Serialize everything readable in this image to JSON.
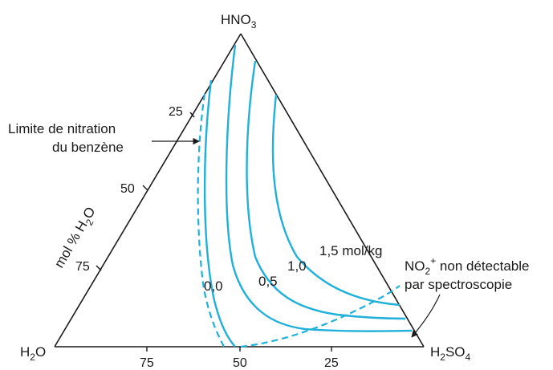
{
  "vertices": {
    "top": {
      "main": "HNO",
      "sub": "3",
      "tail": ""
    },
    "left": {
      "main": "H",
      "sub": "2",
      "tail": "O"
    },
    "right": {
      "main": "H",
      "sub": "2",
      "tail": "SO",
      "sub2": "4"
    }
  },
  "left_axis": {
    "title_main": "mol % H",
    "title_sub": "2",
    "title_tail": "O",
    "ticks": [
      "25",
      "50",
      "75"
    ]
  },
  "bottom_axis": {
    "ticks": [
      "75",
      "50",
      "25"
    ]
  },
  "curve_labels": [
    "0,0",
    "0,5",
    "1,0",
    "1,5 mol/kg"
  ],
  "annotations": {
    "nitration_line1": "Limite de nitration",
    "nitration_line2": "du benzène",
    "no2_line1_main": "NO",
    "no2_line1_sub": "2",
    "no2_line1_sup": "+",
    "no2_line1_tail": " non détectable",
    "no2_line2": "par spectroscopie"
  },
  "colors": {
    "curves": "#20b0da",
    "frame": "#1a1a1a"
  }
}
